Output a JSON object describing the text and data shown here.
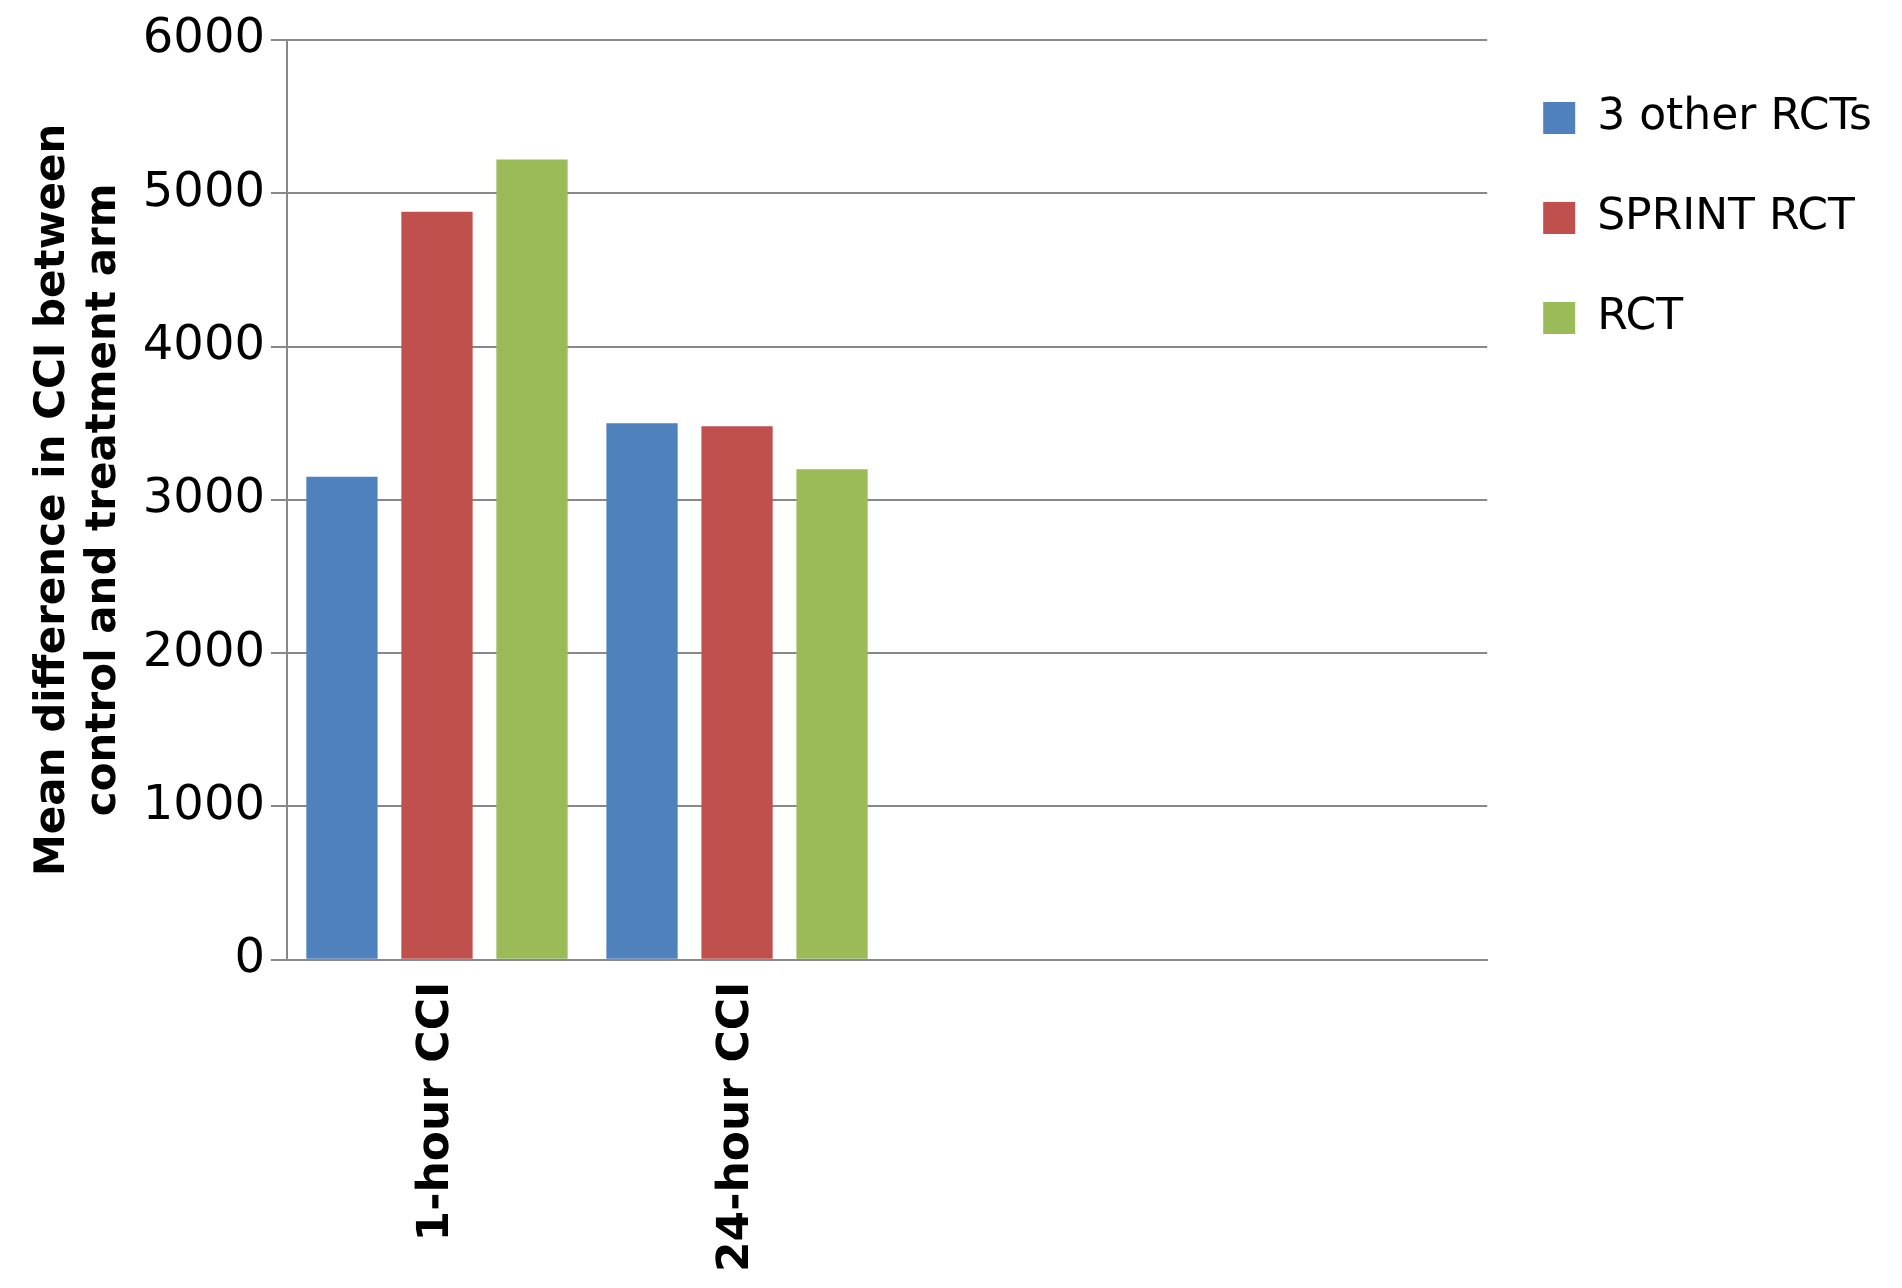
{
  "chart_data": {
    "type": "bar",
    "ylabel": "Mean difference in CCI between control and treatment arm",
    "categories": [
      "1-hour CCI",
      "24-hour CCI",
      null,
      null
    ],
    "series": [
      {
        "name": "3 other RCTs",
        "color": "#4f81bd",
        "values": [
          3150,
          3500,
          null,
          null
        ]
      },
      {
        "name": "SPRINT RCT",
        "color": "#c0504d",
        "values": [
          4880,
          3480,
          null,
          null
        ]
      },
      {
        "name": "RCT",
        "color": "#9bbb59",
        "values": [
          5220,
          3200,
          null,
          null
        ]
      }
    ],
    "ylim": [
      0,
      6000
    ],
    "yticks": [
      0,
      1000,
      2000,
      3000,
      4000,
      5000,
      6000
    ],
    "grid": "y",
    "legend": "right"
  }
}
